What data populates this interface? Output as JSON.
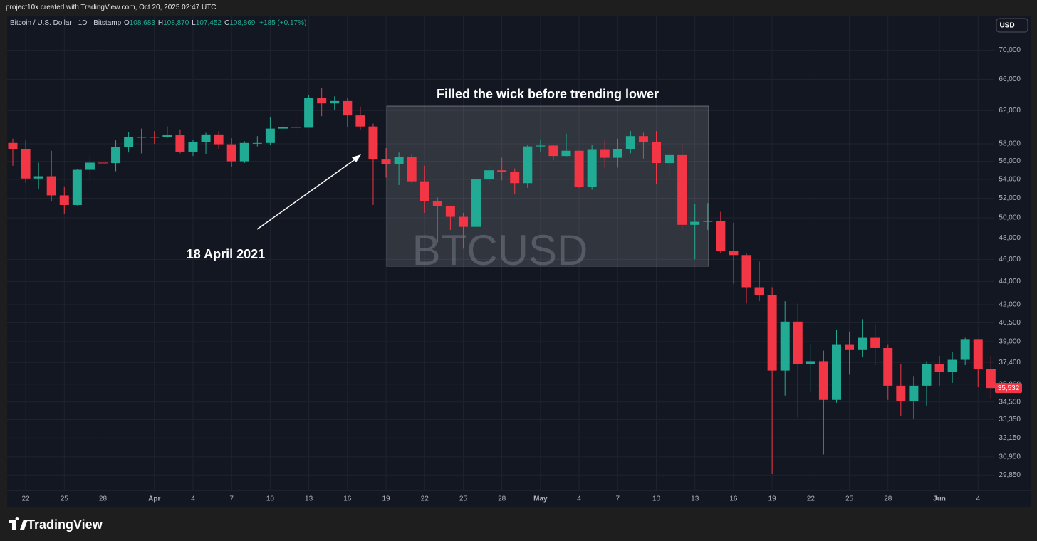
{
  "header": {
    "credit": "project10x created with TradingView.com, Oct 20, 2025 02:47 UTC"
  },
  "chart_data": {
    "type": "candlestick",
    "symbol_line": "Bitcoin / U.S. Dollar · 1D · Bitstamp",
    "ohlc_readout": [
      {
        "key": "O",
        "value": "108,683"
      },
      {
        "key": "H",
        "value": "108,870"
      },
      {
        "key": "L",
        "value": "107,452"
      },
      {
        "key": "C",
        "value": "108,869"
      }
    ],
    "change": "+185 (+0.17%)",
    "currency_button": "USD",
    "watermark": "BTCUSD",
    "annotations": [
      "Filled the wick before trending lower",
      "18 April 2021"
    ],
    "categories": [
      "Mar 21",
      "Mar 22",
      "Mar 23",
      "Mar 24",
      "Mar 25",
      "Mar 26",
      "Mar 27",
      "Mar 28",
      "Mar 29",
      "Mar 30",
      "Mar 31",
      "Apr 1",
      "Apr 2",
      "Apr 3",
      "Apr 4",
      "Apr 5",
      "Apr 6",
      "Apr 7",
      "Apr 8",
      "Apr 9",
      "Apr 10",
      "Apr 11",
      "Apr 12",
      "Apr 13",
      "Apr 14",
      "Apr 15",
      "Apr 16",
      "Apr 17",
      "Apr 18",
      "Apr 19",
      "Apr 20",
      "Apr 21",
      "Apr 22",
      "Apr 23",
      "Apr 24",
      "Apr 25",
      "Apr 26",
      "Apr 27",
      "Apr 28",
      "Apr 29",
      "Apr 30",
      "May 1",
      "May 2",
      "May 3",
      "May 4",
      "May 5",
      "May 6",
      "May 7",
      "May 8",
      "May 9",
      "May 10",
      "May 11",
      "May 12",
      "May 13",
      "May 14",
      "May 15",
      "May 16",
      "May 17",
      "May 18",
      "May 19",
      "May 20",
      "May 21",
      "May 22",
      "May 23",
      "May 24",
      "May 25",
      "May 26",
      "May 27",
      "May 28",
      "May 29",
      "May 30",
      "May 31",
      "Jun 1",
      "Jun 2",
      "Jun 3",
      "Jun 4",
      "Jun 5"
    ],
    "open": [
      58100,
      57350,
      54100,
      54350,
      52300,
      51300,
      55050,
      55850,
      55800,
      57600,
      58800,
      58800,
      58750,
      59000,
      57100,
      58200,
      59100,
      57950,
      56000,
      58100,
      58100,
      59800,
      60000,
      59900,
      63600,
      62900,
      63200,
      61400,
      60050,
      56200,
      55700,
      56500,
      53800,
      51700,
      51200,
      50100,
      49100,
      54000,
      55000,
      54800,
      53600,
      57700,
      57800,
      56600,
      57200,
      53200,
      57300,
      56400,
      57400,
      58900,
      58200,
      55800,
      56700,
      49300,
      49600,
      49700,
      46800,
      46400,
      43500,
      42800,
      36800,
      40600,
      37300,
      37500,
      34700,
      38800,
      38400,
      39300,
      38500,
      35700,
      34600,
      35700,
      37300,
      36700,
      37600,
      39200,
      36900
    ],
    "high": [
      58600,
      58400,
      55850,
      57200,
      53250,
      55100,
      56600,
      56550,
      58400,
      59400,
      59800,
      59500,
      60050,
      59700,
      58500,
      59300,
      59500,
      58650,
      58300,
      58900,
      61200,
      60700,
      61300,
      64000,
      64900,
      63800,
      63600,
      62500,
      60400,
      57500,
      57000,
      56800,
      55500,
      52100,
      51200,
      50500,
      54400,
      55500,
      56400,
      55200,
      57900,
      58500,
      57900,
      59200,
      57200,
      57900,
      58400,
      58600,
      59500,
      59300,
      59500,
      57000,
      58000,
      51400,
      51500,
      50600,
      49500,
      46600,
      45800,
      43500,
      42300,
      42100,
      38800,
      38300,
      39900,
      39800,
      40800,
      40400,
      38800,
      37300,
      36400,
      37500,
      37900,
      38200,
      39300,
      39200,
      37900
    ],
    "low": [
      55500,
      53650,
      53000,
      51700,
      50400,
      51250,
      53950,
      54700,
      54900,
      57000,
      56900,
      58000,
      58700,
      56900,
      56600,
      56800,
      57400,
      55400,
      55800,
      57700,
      57900,
      59200,
      59400,
      59900,
      61300,
      62100,
      60000,
      59600,
      51300,
      54200,
      53400,
      53600,
      50500,
      47600,
      48800,
      47000,
      48900,
      53400,
      53900,
      52400,
      53100,
      57100,
      56100,
      56500,
      53100,
      52900,
      55300,
      55300,
      56900,
      56300,
      53500,
      54300,
      48800,
      46000,
      48800,
      46600,
      43800,
      42100,
      42300,
      29900,
      35000,
      33500,
      35300,
      31100,
      34500,
      36500,
      37800,
      37200,
      34700,
      33600,
      33400,
      34300,
      35700,
      35900,
      37200,
      35600,
      34800
    ],
    "close": [
      57350,
      54100,
      54350,
      52300,
      51300,
      55050,
      55850,
      55800,
      57600,
      58800,
      58800,
      58750,
      59000,
      57100,
      58200,
      59100,
      57950,
      56000,
      58100,
      58100,
      59800,
      60000,
      59900,
      63600,
      62900,
      63200,
      61400,
      60050,
      56200,
      55700,
      56500,
      53800,
      51700,
      51200,
      50100,
      49100,
      54000,
      55000,
      54800,
      53600,
      57700,
      57800,
      56600,
      57200,
      53200,
      57300,
      56400,
      57400,
      58900,
      58200,
      55800,
      56700,
      49300,
      49600,
      49700,
      46800,
      46400,
      43500,
      42800,
      36800,
      40600,
      37300,
      37500,
      34700,
      38800,
      38400,
      39300,
      38500,
      35700,
      34600,
      35700,
      37300,
      36700,
      37600,
      39200,
      36900,
      35532
    ],
    "up_color": "#22ab94",
    "down_color": "#f23645",
    "last_price": {
      "value": 35532,
      "label": "35,532"
    },
    "log_scale": true,
    "grid": true,
    "ylim": [
      28000,
      75000
    ],
    "yticks": [
      {
        "value": 70000,
        "label": "70,000"
      },
      {
        "value": 66000,
        "label": "66,000"
      },
      {
        "value": 62000,
        "label": "62,000"
      },
      {
        "value": 58000,
        "label": "58,000"
      },
      {
        "value": 56000,
        "label": "56,000"
      },
      {
        "value": 54000,
        "label": "54,000"
      },
      {
        "value": 52000,
        "label": "52,000"
      },
      {
        "value": 50000,
        "label": "50,000"
      },
      {
        "value": 48000,
        "label": "48,000"
      },
      {
        "value": 46000,
        "label": "46,000"
      },
      {
        "value": 44000,
        "label": "44,000"
      },
      {
        "value": 42000,
        "label": "42,000"
      },
      {
        "value": 40500,
        "label": "40,500"
      },
      {
        "value": 39000,
        "label": "39,000"
      },
      {
        "value": 37400,
        "label": "37,400"
      },
      {
        "value": 35800,
        "label": "35,800"
      },
      {
        "value": 34550,
        "label": "34,550"
      },
      {
        "value": 33350,
        "label": "33,350"
      },
      {
        "value": 32150,
        "label": "32,150"
      },
      {
        "value": 30950,
        "label": "30,950"
      },
      {
        "value": 29850,
        "label": "29,850"
      }
    ],
    "xticks": [
      {
        "value": "Mar 22",
        "label": "22"
      },
      {
        "value": "Mar 25",
        "label": "25"
      },
      {
        "value": "Mar 28",
        "label": "28"
      },
      {
        "value": "Apr 1",
        "label": "Apr"
      },
      {
        "value": "Apr 4",
        "label": "4"
      },
      {
        "value": "Apr 7",
        "label": "7"
      },
      {
        "value": "Apr 10",
        "label": "10"
      },
      {
        "value": "Apr 13",
        "label": "13"
      },
      {
        "value": "Apr 16",
        "label": "16"
      },
      {
        "value": "Apr 19",
        "label": "19"
      },
      {
        "value": "Apr 22",
        "label": "22"
      },
      {
        "value": "Apr 25",
        "label": "25"
      },
      {
        "value": "Apr 28",
        "label": "28"
      },
      {
        "value": "May 1",
        "label": "May"
      },
      {
        "value": "May 4",
        "label": "4"
      },
      {
        "value": "May 7",
        "label": "7"
      },
      {
        "value": "May 10",
        "label": "10"
      },
      {
        "value": "May 13",
        "label": "13"
      },
      {
        "value": "May 16",
        "label": "16"
      },
      {
        "value": "May 19",
        "label": "19"
      },
      {
        "value": "May 22",
        "label": "22"
      },
      {
        "value": "May 25",
        "label": "25"
      },
      {
        "value": "May 28",
        "label": "28"
      },
      {
        "value": "Jun 1",
        "label": "Jun"
      },
      {
        "value": "Jun 4",
        "label": "4"
      }
    ]
  },
  "footer": {
    "brand": "TradingView"
  }
}
